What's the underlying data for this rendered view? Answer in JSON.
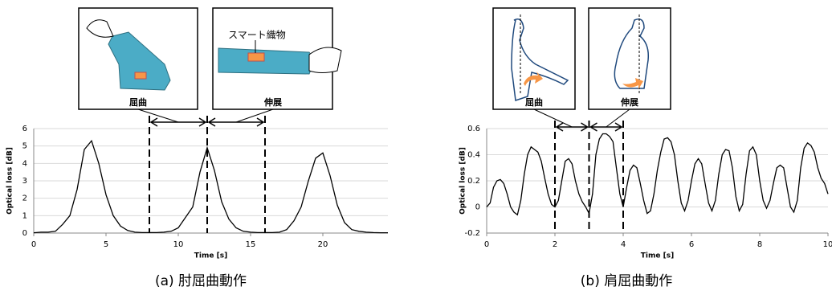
{
  "chart_data": [
    {
      "type": "line",
      "caption": "(a)  肘屈曲動作",
      "xlabel": "Time [s]",
      "ylabel": "Optical loss [dB]",
      "annotations": [
        "屈曲",
        "伸展",
        "スマート織物"
      ],
      "color": "#000000",
      "grid": true,
      "xlim": [
        0,
        24.5
      ],
      "ylim": [
        0,
        6
      ],
      "xticks": [
        0,
        5,
        10,
        15,
        20
      ],
      "yticks": [
        0,
        1,
        2,
        3,
        4,
        5,
        6
      ],
      "markers": [
        8,
        12,
        16
      ],
      "x": [
        0,
        0.5,
        1,
        1.5,
        2,
        2.5,
        3,
        3.5,
        4,
        4.5,
        5,
        5.5,
        6,
        6.5,
        7,
        7.5,
        8,
        8.5,
        9,
        9.5,
        10,
        10.5,
        11,
        11.5,
        12,
        12.5,
        13,
        13.5,
        14,
        14.5,
        15,
        15.5,
        16,
        16.5,
        17,
        17.5,
        18,
        18.5,
        19,
        19.5,
        20,
        20.5,
        21,
        21.5,
        22,
        22.5,
        23,
        23.5,
        24,
        24.5
      ],
      "values": [
        0.02,
        0.05,
        0.05,
        0.1,
        0.5,
        1.0,
        2.5,
        4.8,
        5.3,
        4.0,
        2.2,
        1.0,
        0.4,
        0.15,
        0.05,
        0.03,
        0.03,
        0.03,
        0.05,
        0.1,
        0.3,
        0.9,
        1.5,
        3.5,
        4.9,
        3.6,
        1.8,
        0.8,
        0.3,
        0.1,
        0.05,
        0.03,
        0.03,
        0.03,
        0.05,
        0.2,
        0.7,
        1.5,
        3.0,
        4.3,
        4.6,
        3.3,
        1.6,
        0.6,
        0.2,
        0.1,
        0.05,
        0.03,
        0.02,
        0.02
      ]
    },
    {
      "type": "line",
      "caption": "(b)  肩屈曲動作",
      "xlabel": "Time [s]",
      "ylabel": "Optical loss [dB]",
      "annotations": [
        "屈曲",
        "伸展"
      ],
      "color": "#000000",
      "grid": true,
      "xlim": [
        0,
        10
      ],
      "ylim": [
        -0.2,
        0.6
      ],
      "xticks": [
        0,
        2,
        4,
        6,
        8,
        10
      ],
      "yticks": [
        -0.2,
        0,
        0.2,
        0.4,
        0.6
      ],
      "markers": [
        2,
        3,
        4
      ],
      "x": [
        0,
        0.1,
        0.2,
        0.3,
        0.4,
        0.5,
        0.6,
        0.7,
        0.8,
        0.9,
        1,
        1.1,
        1.2,
        1.3,
        1.4,
        1.5,
        1.6,
        1.7,
        1.8,
        1.9,
        2,
        2.1,
        2.2,
        2.3,
        2.4,
        2.5,
        2.6,
        2.7,
        2.8,
        2.9,
        3,
        3.1,
        3.2,
        3.3,
        3.4,
        3.5,
        3.6,
        3.7,
        3.8,
        3.9,
        4,
        4.1,
        4.2,
        4.3,
        4.4,
        4.5,
        4.6,
        4.7,
        4.8,
        4.9,
        5,
        5.1,
        5.2,
        5.3,
        5.4,
        5.5,
        5.6,
        5.7,
        5.8,
        5.9,
        6,
        6.1,
        6.2,
        6.3,
        6.4,
        6.5,
        6.6,
        6.7,
        6.8,
        6.9,
        7,
        7.1,
        7.2,
        7.3,
        7.4,
        7.5,
        7.6,
        7.7,
        7.8,
        7.9,
        8,
        8.1,
        8.2,
        8.3,
        8.4,
        8.5,
        8.6,
        8.7,
        8.8,
        8.9,
        9,
        9.1,
        9.2,
        9.3,
        9.4,
        9.5,
        9.6,
        9.7,
        9.8,
        9.9,
        10
      ],
      "values": [
        0,
        0.03,
        0.15,
        0.2,
        0.21,
        0.18,
        0.1,
        0,
        -0.04,
        -0.06,
        0.05,
        0.25,
        0.4,
        0.46,
        0.44,
        0.42,
        0.35,
        0.22,
        0.1,
        0.02,
        0,
        0.05,
        0.2,
        0.35,
        0.37,
        0.33,
        0.2,
        0.1,
        0.04,
        0,
        -0.05,
        0.1,
        0.4,
        0.52,
        0.56,
        0.56,
        0.54,
        0.5,
        0.3,
        0.1,
        0,
        0.15,
        0.28,
        0.32,
        0.3,
        0.18,
        0.05,
        -0.05,
        -0.03,
        0.1,
        0.28,
        0.42,
        0.52,
        0.53,
        0.5,
        0.4,
        0.2,
        0.03,
        -0.03,
        0.05,
        0.2,
        0.33,
        0.37,
        0.33,
        0.18,
        0.03,
        -0.03,
        0.05,
        0.25,
        0.4,
        0.44,
        0.43,
        0.3,
        0.08,
        -0.03,
        0.02,
        0.25,
        0.43,
        0.46,
        0.4,
        0.2,
        0.05,
        -0.01,
        0.05,
        0.18,
        0.3,
        0.32,
        0.3,
        0.15,
        0,
        -0.04,
        0.05,
        0.3,
        0.45,
        0.49,
        0.47,
        0.42,
        0.3,
        0.22,
        0.18,
        0.1
      ]
    }
  ]
}
